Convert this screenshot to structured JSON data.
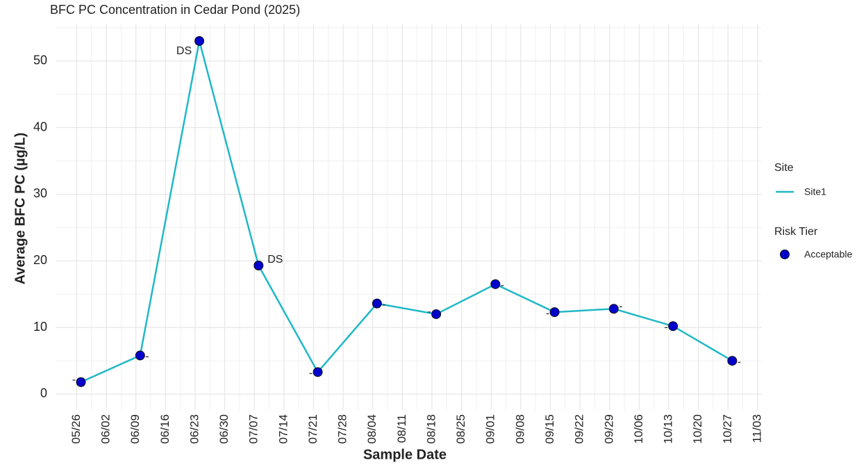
{
  "chart_data": {
    "type": "line",
    "title": "BFC PC Concentration in Cedar Pond (2025)",
    "x_label": "Sample Date",
    "y_label": "Average BFC PC (µg/L)",
    "x": [
      "05/27",
      "06/10",
      "06/24",
      "07/08",
      "07/22",
      "08/05",
      "08/19",
      "09/02",
      "09/16",
      "09/30",
      "10/14",
      "10/28"
    ],
    "series": [
      {
        "name": "Site1",
        "color": "#1fb8c6",
        "values": [
          1.8,
          5.8,
          53.0,
          19.3,
          3.3,
          13.6,
          12.0,
          16.5,
          12.3,
          12.8,
          10.2,
          5.0
        ],
        "point_labels": [
          "-",
          "-",
          "DS",
          "DS",
          "-",
          "-",
          "-",
          "-",
          "-",
          "-",
          "-",
          "-"
        ]
      }
    ],
    "legend_title": "Site",
    "point_legend_title": "Risk Tier",
    "point_legend": [
      {
        "name": "Acceptable",
        "color": "#0000cd"
      }
    ],
    "xlim": [
      "05/21",
      "11/04"
    ],
    "xticks": [
      "05/26",
      "06/02",
      "06/09",
      "06/16",
      "06/23",
      "06/30",
      "07/07",
      "07/14",
      "07/21",
      "07/28",
      "08/04",
      "08/11",
      "08/18",
      "08/25",
      "09/01",
      "09/08",
      "09/15",
      "09/22",
      "09/29",
      "10/06",
      "10/13",
      "10/20",
      "10/27",
      "11/03"
    ],
    "ylim": [
      -2.4,
      55.5
    ],
    "yticks": [
      0,
      10,
      20,
      30,
      40,
      50
    ],
    "grid": true,
    "legend_position": "right"
  }
}
